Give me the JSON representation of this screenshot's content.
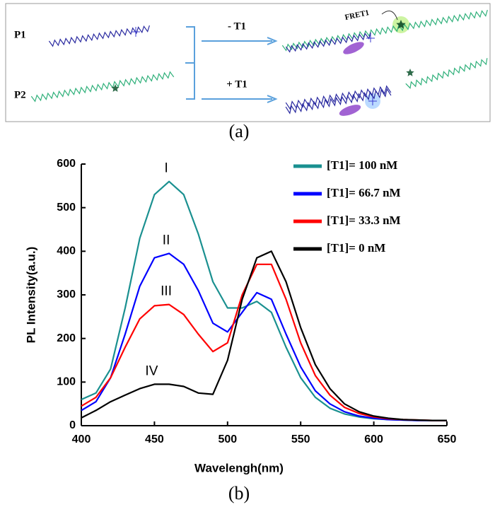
{
  "diagram": {
    "p1": "P1",
    "p2": "P2",
    "minus": "- T1",
    "plus": "+ T1",
    "fret": "FRET1",
    "panel_a": "(a)",
    "panel_b": "(b)"
  },
  "chart_data": {
    "type": "line",
    "xlabel": "Wavelengh(nm)",
    "ylabel": "PL Intensity(a.u.)",
    "x": [
      400,
      410,
      420,
      430,
      440,
      450,
      460,
      470,
      480,
      490,
      500,
      510,
      520,
      530,
      540,
      550,
      560,
      570,
      580,
      590,
      600,
      610,
      620,
      630,
      640,
      650
    ],
    "series": [
      {
        "name": "[T1]= 100 nM",
        "color": "#1a9090",
        "values": [
          60,
          75,
          130,
          270,
          430,
          530,
          560,
          530,
          440,
          330,
          270,
          270,
          285,
          260,
          180,
          110,
          65,
          40,
          27,
          20,
          16,
          14,
          13,
          12,
          12,
          12
        ]
      },
      {
        "name": "[T1]= 66.7 nM",
        "color": "#0000ff",
        "values": [
          35,
          55,
          110,
          210,
          320,
          385,
          395,
          370,
          310,
          235,
          215,
          260,
          305,
          290,
          210,
          135,
          80,
          50,
          32,
          22,
          17,
          14,
          13,
          12,
          12,
          12
        ]
      },
      {
        "name": "[T1]= 33.3 nM",
        "color": "#ff0000",
        "values": [
          45,
          65,
          110,
          180,
          245,
          275,
          278,
          255,
          210,
          170,
          190,
          300,
          370,
          370,
          290,
          190,
          115,
          70,
          42,
          28,
          20,
          16,
          14,
          13,
          12,
          12
        ]
      },
      {
        "name": "[T1]= 0 nM",
        "color": "#000000",
        "values": [
          18,
          35,
          55,
          70,
          85,
          95,
          95,
          90,
          75,
          72,
          150,
          290,
          385,
          400,
          330,
          225,
          140,
          85,
          50,
          32,
          22,
          17,
          14,
          13,
          12,
          12
        ]
      }
    ],
    "annotations": [
      "I",
      "II",
      "III",
      "IV"
    ],
    "xlim": [
      400,
      650
    ],
    "xticks": [
      400,
      450,
      500,
      550,
      600,
      650
    ],
    "ylim": [
      0,
      600
    ],
    "yticks": [
      0,
      100,
      200,
      300,
      400,
      500,
      600
    ],
    "legend": "upper right"
  }
}
